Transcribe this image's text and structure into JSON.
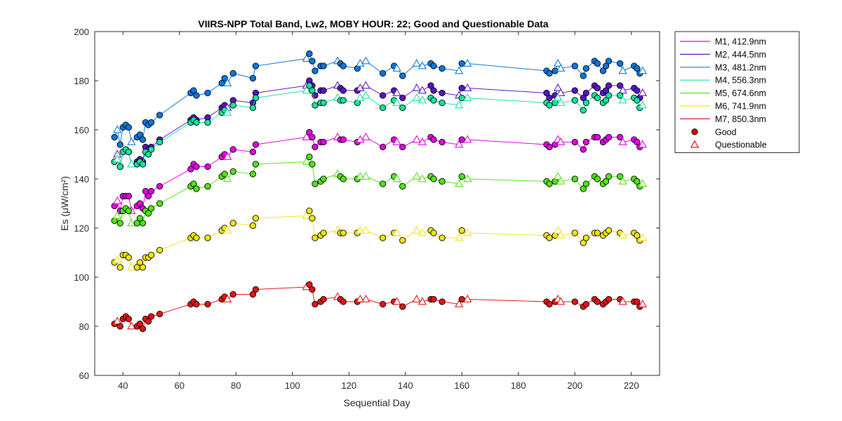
{
  "chart_data": {
    "type": "line",
    "title": "VIIRS-NPP Total Band,  Lw2, MOBY HOUR: 22;  Good and Questionable Data",
    "xlabel": "Sequential Day",
    "ylabel": "Es (μW/cm²)",
    "xlim": [
      30,
      230
    ],
    "ylim": [
      60,
      200
    ],
    "xticks": [
      40,
      60,
      80,
      100,
      120,
      140,
      160,
      180,
      200,
      220
    ],
    "yticks": [
      60,
      80,
      100,
      120,
      140,
      160,
      180,
      200
    ],
    "grid": false,
    "legend_position": "outside-right-top",
    "markers": {
      "good": {
        "label": "Good",
        "shape": "circle",
        "color": "#e00000"
      },
      "questionable": {
        "label": "Questionable",
        "shape": "triangle",
        "color": "#e00000"
      }
    },
    "x": [
      37,
      38,
      39,
      40,
      41,
      42,
      43,
      45,
      46,
      47,
      48,
      49,
      50,
      53,
      64,
      65,
      66,
      70,
      75,
      76,
      77,
      79,
      86,
      87,
      105,
      106,
      107,
      108,
      110,
      111,
      116,
      117,
      118,
      123,
      124,
      126,
      132,
      136,
      137,
      139,
      144,
      146,
      149,
      150,
      153,
      159,
      160,
      162,
      190,
      191,
      193,
      194,
      195,
      200,
      203,
      204,
      207,
      208,
      210,
      211,
      212,
      216,
      217,
      221,
      222,
      223,
      224
    ],
    "series": [
      {
        "name": "M1, 412.9nm",
        "color": "#e600e6",
        "values": [
          129,
          131,
          127,
          133,
          133,
          133,
          127,
          129,
          130,
          128,
          135,
          133,
          135,
          137,
          144,
          146,
          145,
          145,
          149,
          150,
          149,
          152,
          151,
          154,
          157,
          159,
          157,
          153,
          155,
          155,
          157,
          156,
          156,
          155,
          156,
          157,
          153,
          156,
          155,
          153,
          156,
          155,
          157,
          156,
          155,
          154,
          156,
          156,
          154,
          153,
          154,
          156,
          155,
          155,
          152,
          155,
          157,
          157,
          155,
          156,
          157,
          157,
          155,
          156,
          155,
          153,
          154
        ]
      },
      {
        "name": "M2, 444.5nm",
        "color": "#5a14c8",
        "values": [
          147,
          150,
          145,
          151,
          152,
          151,
          146,
          147,
          148,
          147,
          153,
          152,
          153,
          156,
          164,
          165,
          164,
          165,
          169,
          170,
          169,
          172,
          171,
          175,
          178,
          180,
          178,
          174,
          176,
          176,
          178,
          177,
          176,
          176,
          177,
          178,
          174,
          176,
          175,
          173,
          177,
          176,
          178,
          176,
          175,
          174,
          177,
          177,
          175,
          173,
          174,
          177,
          175,
          176,
          173,
          175,
          178,
          177,
          175,
          176,
          178,
          178,
          176,
          177,
          176,
          173,
          175
        ]
      },
      {
        "name": "M3, 481.2nm",
        "color": "#0a78dc",
        "values": [
          157,
          160,
          154,
          161,
          162,
          161,
          155,
          157,
          158,
          156,
          163,
          162,
          163,
          166,
          175,
          176,
          174,
          175,
          179,
          181,
          179,
          183,
          181,
          186,
          189,
          191,
          188,
          184,
          186,
          186,
          188,
          187,
          186,
          185,
          187,
          188,
          183,
          186,
          185,
          182,
          187,
          186,
          187,
          186,
          185,
          184,
          187,
          187,
          184,
          183,
          184,
          187,
          185,
          186,
          182,
          185,
          188,
          187,
          184,
          186,
          188,
          187,
          184,
          186,
          185,
          183,
          184
        ]
      },
      {
        "name": "M4, 556.3nm",
        "color": "#14e6a0",
        "values": [
          147,
          148,
          145,
          151,
          152,
          151,
          146,
          146,
          147,
          146,
          151,
          150,
          152,
          155,
          163,
          164,
          163,
          163,
          167,
          168,
          167,
          170,
          169,
          173,
          176,
          178,
          176,
          170,
          171,
          171,
          173,
          172,
          172,
          171,
          173,
          174,
          169,
          172,
          171,
          169,
          173,
          172,
          173,
          172,
          171,
          170,
          173,
          173,
          171,
          170,
          171,
          173,
          171,
          172,
          168,
          171,
          174,
          173,
          171,
          172,
          174,
          174,
          172,
          173,
          172,
          169,
          170
        ]
      },
      {
        "name": "M5, 674.6nm",
        "color": "#50e614",
        "values": [
          123,
          125,
          122,
          127,
          128,
          127,
          122,
          122,
          124,
          122,
          127,
          126,
          128,
          130,
          137,
          138,
          136,
          137,
          141,
          142,
          140,
          143,
          142,
          146,
          147,
          149,
          146,
          138,
          139,
          140,
          142,
          141,
          140,
          140,
          141,
          141,
          138,
          141,
          140,
          137,
          141,
          140,
          141,
          140,
          139,
          138,
          141,
          140,
          139,
          138,
          139,
          141,
          139,
          140,
          136,
          138,
          141,
          140,
          138,
          139,
          141,
          141,
          139,
          140,
          139,
          137,
          138
        ]
      },
      {
        "name": "M6, 741.9nm",
        "color": "#f0e614",
        "values": [
          106,
          107,
          104,
          109,
          109,
          108,
          104,
          104,
          106,
          104,
          108,
          108,
          109,
          111,
          116,
          117,
          116,
          116,
          119,
          120,
          119,
          122,
          121,
          124,
          125,
          127,
          124,
          116,
          117,
          118,
          119,
          118,
          118,
          118,
          119,
          119,
          116,
          118,
          118,
          115,
          119,
          118,
          119,
          118,
          116,
          116,
          119,
          118,
          117,
          116,
          117,
          119,
          117,
          118,
          114,
          116,
          118,
          118,
          117,
          118,
          119,
          118,
          117,
          118,
          117,
          115,
          116
        ]
      },
      {
        "name": "M7, 850.3nm",
        "color": "#e61414",
        "values": [
          81,
          82,
          80,
          83,
          84,
          83,
          80,
          80,
          81,
          79,
          83,
          82,
          84,
          85,
          89,
          90,
          89,
          89,
          91,
          92,
          91,
          93,
          93,
          95,
          96,
          97,
          95,
          89,
          90,
          91,
          92,
          91,
          90,
          90,
          91,
          91,
          89,
          90,
          90,
          88,
          91,
          90,
          91,
          91,
          90,
          89,
          91,
          91,
          90,
          89,
          90,
          91,
          90,
          90,
          88,
          89,
          91,
          90,
          89,
          90,
          91,
          91,
          90,
          90,
          90,
          88,
          89
        ]
      }
    ],
    "quality": [
      "good",
      "questionable",
      "good",
      "good",
      "good",
      "good",
      "questionable",
      "good",
      "good",
      "good",
      "good",
      "good",
      "good",
      "good",
      "good",
      "good",
      "good",
      "good",
      "good",
      "good",
      "questionable",
      "good",
      "good",
      "good",
      "questionable",
      "good",
      "good",
      "good",
      "good",
      "good",
      "questionable",
      "good",
      "good",
      "good",
      "questionable",
      "questionable",
      "good",
      "good",
      "questionable",
      "good",
      "questionable",
      "questionable",
      "good",
      "good",
      "good",
      "questionable",
      "good",
      "questionable",
      "good",
      "good",
      "good",
      "questionable",
      "questionable",
      "good",
      "good",
      "good",
      "good",
      "good",
      "good",
      "good",
      "good",
      "good",
      "questionable",
      "good",
      "good",
      "good",
      "questionable"
    ]
  }
}
